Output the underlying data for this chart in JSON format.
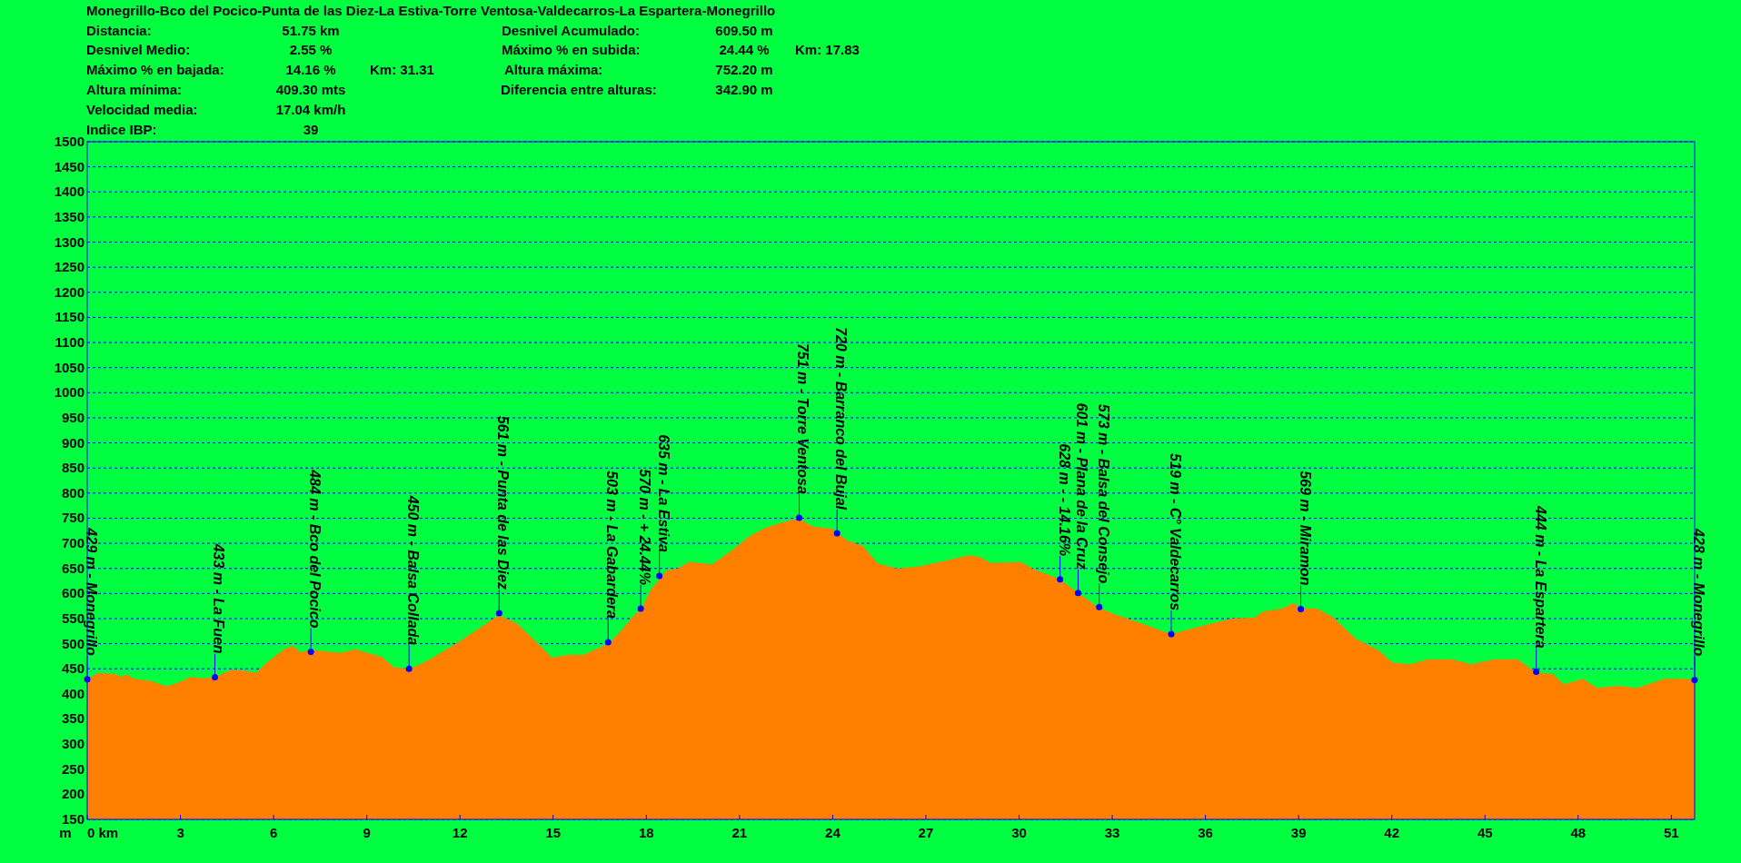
{
  "chart_data": {
    "type": "area",
    "title": "Monegrillo-Bco del Pocico-Punta de las Diez-La Estiva-Torre Ventosa-Valdecarros-La Espartera-Monegrillo",
    "ylabel": "m",
    "xlim": [
      0,
      51.75
    ],
    "ylim": [
      150,
      1500
    ],
    "xticks": [
      {
        "value": 0,
        "label": "0 km"
      },
      3,
      6,
      9,
      12,
      15,
      18,
      21,
      24,
      27,
      30,
      33,
      36,
      39,
      42,
      45,
      48,
      51
    ],
    "yticks": [
      150,
      200,
      250,
      300,
      350,
      400,
      450,
      500,
      550,
      600,
      650,
      700,
      750,
      800,
      850,
      900,
      950,
      1000,
      1050,
      1100,
      1150,
      1200,
      1250,
      1300,
      1350,
      1400,
      1450,
      1500
    ],
    "grid": "y",
    "line_style": "dashed",
    "series": [
      {
        "color": "#ff8000",
        "x": [
          0,
          0.34,
          0.86,
          1.13,
          1.25,
          1.51,
          2.04,
          2.56,
          2.95,
          3.34,
          3.73,
          4.11,
          4.64,
          5.03,
          5.43,
          5.83,
          6.34,
          6.6,
          6.86,
          7.2,
          7.65,
          8.17,
          8.63,
          8.95,
          9.48,
          9.87,
          10.36,
          10.78,
          11.17,
          11.7,
          12.22,
          12.74,
          13.26,
          13.84,
          14.3,
          14.96,
          15.48,
          16.0,
          16.21,
          16.78,
          17.19,
          17.55,
          17.83,
          18.16,
          18.65,
          19.01,
          19.38,
          20.11,
          20.71,
          21.32,
          21.8,
          22.29,
          22.9,
          23.38,
          23.99,
          24.48,
          24.96,
          25.45,
          26.06,
          26.79,
          27.76,
          28.37,
          28.73,
          29.09,
          30.06,
          30.42,
          31.33,
          31.9,
          32.58,
          33.2,
          34.05,
          34.9,
          35.61,
          36.23,
          36.85,
          37.6,
          37.85,
          38.47,
          38.84,
          39.05,
          39.59,
          40.08,
          40.83,
          41.57,
          42.01,
          42.57,
          43.19,
          43.93,
          44.55,
          45.3,
          46.05,
          46.62,
          47.17,
          47.54,
          48.16,
          48.6,
          49.28,
          49.9,
          50.77,
          51.39,
          51.75
        ],
        "values": [
          429,
          442,
          440,
          434,
          439,
          430,
          426,
          415,
          423,
          434,
          431,
          433,
          448,
          447,
          442,
          465,
          489,
          496,
          483,
          488,
          485,
          482,
          489,
          483,
          474,
          453,
          450,
          461,
          474,
          494,
          514,
          536,
          557,
          540,
          513,
          472,
          478,
          478,
          485,
          500,
          526,
          553,
          569,
          609,
          646,
          650,
          663,
          658,
          684,
          714,
          730,
          740,
          750,
          733,
          729,
          705,
          695,
          660,
          650,
          654,
          667,
          676,
          673,
          661,
          663,
          650,
          628,
          601,
          571,
          556,
          538,
          519,
          531,
          541,
          550,
          552,
          564,
          570,
          581,
          571,
          570,
          554,
          510,
          487,
          463,
          459,
          469,
          469,
          459,
          469,
          469,
          443,
          440,
          419,
          430,
          412,
          416,
          412,
          430,
          430,
          428
        ]
      },
      {
        "type": "scatter",
        "marker": "circle",
        "color": "#0000ff",
        "x": [
          0,
          4.11,
          7.2,
          10.36,
          13.26,
          16.77,
          17.82,
          18.42,
          22.92,
          24.14,
          31.32,
          31.9,
          32.58,
          34.9,
          39.07,
          46.65,
          51.75
        ],
        "values": [
          429,
          433,
          484,
          450,
          561,
          503,
          570,
          635,
          751,
          720,
          628,
          601,
          573,
          519,
          569,
          444,
          428
        ]
      }
    ],
    "annotations": [
      "Distancia:",
      "51.75 km",
      "Desnivel Acumulado:",
      "609.50 m",
      "Desnivel Medio:",
      "2.55 %",
      "Máximo % en subida:",
      "24.44 %",
      "Km: 17.83",
      "Máximo % en bajada:",
      "14.16 %",
      "Km: 31.31",
      "Altura máxima:",
      "752.20 m",
      "Altura mínima:",
      "409.30 mts",
      "Diferencia entre alturas:",
      "342.90 m",
      "Velocidad media:",
      "17.04 km/h",
      "Indice IBP:",
      "39",
      {
        "text": "429 m - Monegrillo",
        "x": 0,
        "y": 429
      },
      {
        "text": "433 m - La Fuen",
        "x": 4.11,
        "y": 433
      },
      {
        "text": "484 m - Bco del Pocico",
        "x": 7.2,
        "y": 484
      },
      {
        "text": "450 m - Balsa Collada",
        "x": 10.36,
        "y": 450
      },
      {
        "text": "561 m - Punta de las Diez",
        "x": 13.26,
        "y": 561
      },
      {
        "text": "503 m - La Gabardera",
        "x": 16.77,
        "y": 503
      },
      {
        "text": "570 m - + 24.44%",
        "x": 17.82,
        "y": 570
      },
      {
        "text": "635 m - La Estiva",
        "x": 18.42,
        "y": 635
      },
      {
        "text": "751 m - Torre Ventosa",
        "x": 22.92,
        "y": 751
      },
      {
        "text": "720 m - Barranco del Bujal",
        "x": 24.14,
        "y": 720
      },
      {
        "text": "628 m - - 14.16%",
        "x": 31.32,
        "y": 628
      },
      {
        "text": "601 m - Plana de la Cruz",
        "x": 31.9,
        "y": 601
      },
      {
        "text": "573 m - Balsa del Consejo",
        "x": 32.58,
        "y": 573
      },
      {
        "text": "519 m - C° Valdecarros",
        "x": 34.9,
        "y": 519
      },
      {
        "text": "569 m - Miramon",
        "x": 39.07,
        "y": 569
      },
      {
        "text": "444 m - La Espartera",
        "x": 46.65,
        "y": 444
      },
      {
        "text": "428 m - Monegrillo",
        "x": 51.75,
        "y": 428
      }
    ]
  }
}
